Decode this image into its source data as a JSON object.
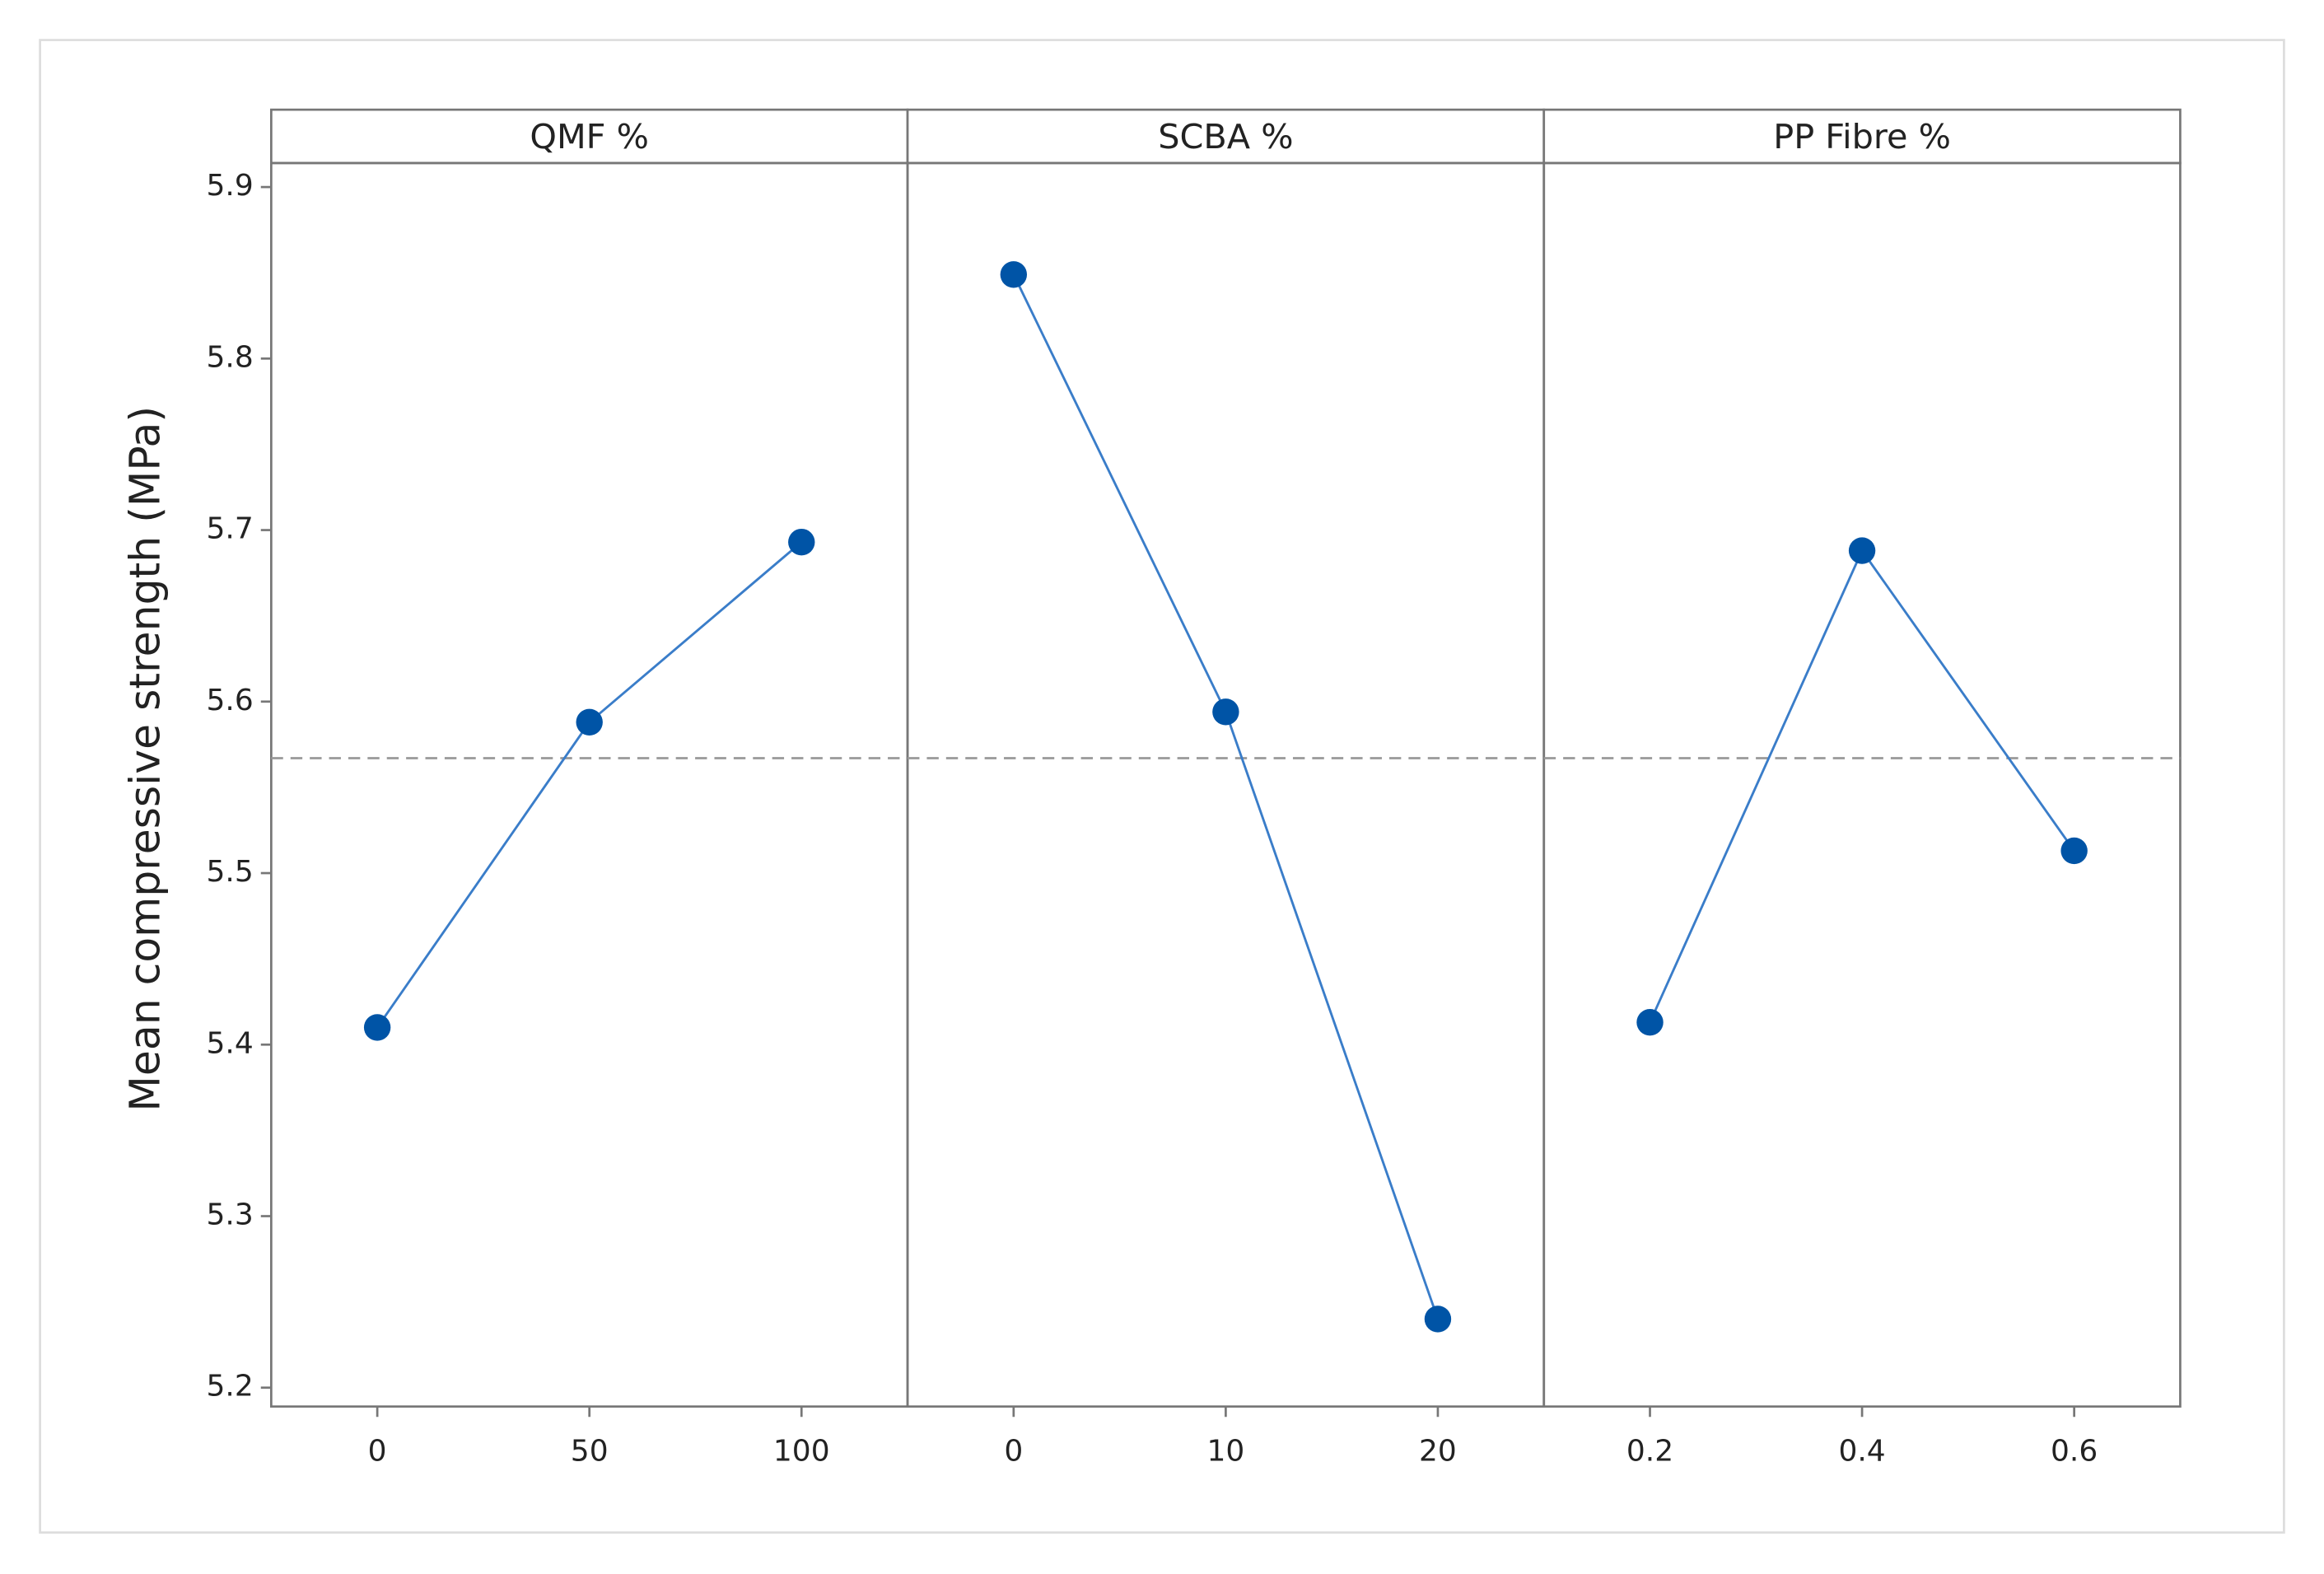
{
  "chart_data": [
    {
      "type": "line",
      "title": "QMF %",
      "y_label": "Mean compressive strength (MPa)",
      "x": [
        0,
        50,
        100
      ],
      "values": [
        5.41,
        5.588,
        5.693
      ],
      "color": "#0054a6",
      "xlim": [
        -25,
        125
      ],
      "xticks": [
        0,
        50,
        100
      ],
      "ylim": [
        5.189,
        5.914
      ],
      "yticks": [
        5.2,
        5.3,
        5.4,
        5.5,
        5.6,
        5.7,
        5.8,
        5.9
      ],
      "reference_line": 5.567
    },
    {
      "type": "line",
      "title": "SCBA %",
      "x": [
        0,
        10,
        20
      ],
      "values": [
        5.849,
        5.594,
        5.24
      ],
      "color": "#0054a6",
      "xlim": [
        -5,
        25
      ],
      "xticks": [
        0,
        10,
        20
      ],
      "ylim": [
        5.189,
        5.914
      ],
      "reference_line": 5.567
    },
    {
      "type": "line",
      "title": "PP Fibre %",
      "x": [
        0.2,
        0.4,
        0.6
      ],
      "values": [
        5.413,
        5.688,
        5.513
      ],
      "color": "#0054a6",
      "xlim": [
        0.1,
        0.7
      ],
      "xticks": [
        0.2,
        0.4,
        0.6
      ],
      "ylim": [
        5.189,
        5.914
      ],
      "reference_line": 5.567
    }
  ]
}
